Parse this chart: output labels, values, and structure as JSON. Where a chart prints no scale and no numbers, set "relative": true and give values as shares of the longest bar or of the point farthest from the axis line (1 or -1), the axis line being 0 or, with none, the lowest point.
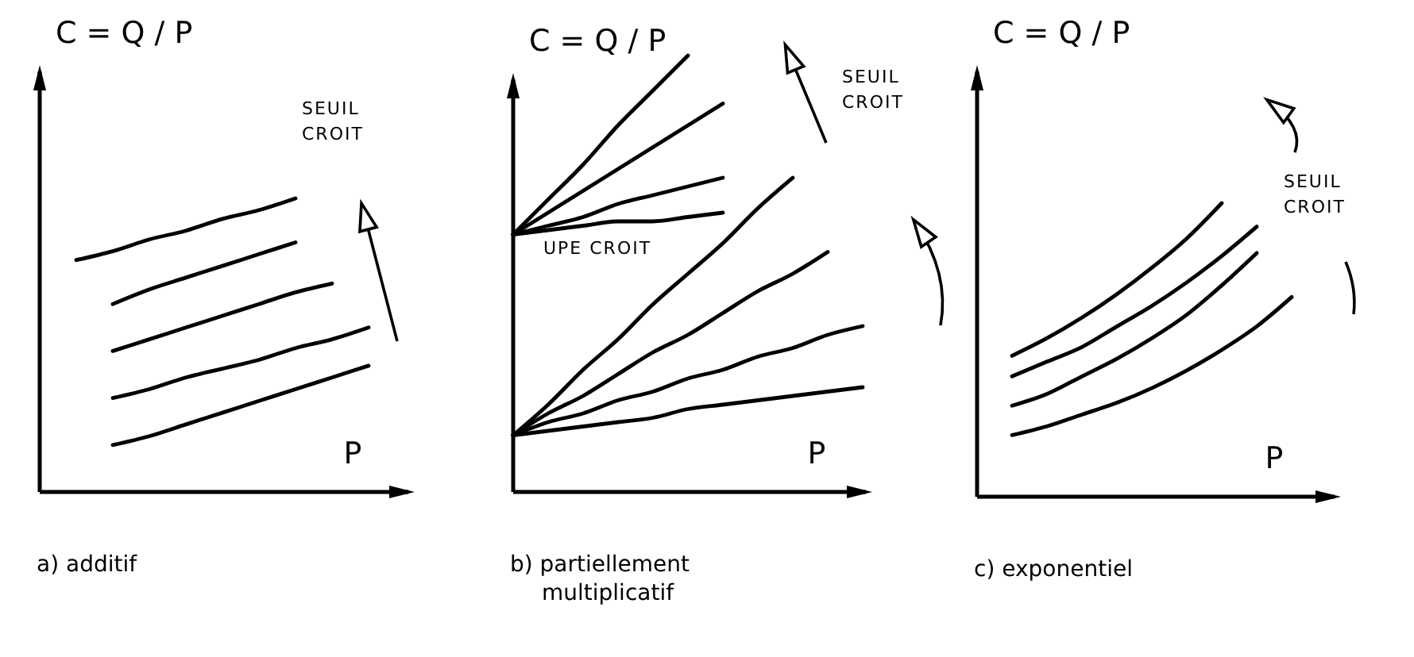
{
  "chart_data": [
    {
      "type": "line",
      "title": "a) additif",
      "xlabel": "P",
      "ylabel": "C = Q / P",
      "relative": true,
      "tick_labels": false,
      "annotations": [
        "SEUIL CROIT"
      ],
      "categories": [
        null,
        null,
        null,
        null,
        null,
        null,
        null,
        null,
        null,
        null,
        null
      ],
      "series": [
        {
          "color": "#000000",
          "values": [
            null,
            0.79,
            0.82,
            0.86,
            0.89,
            0.93,
            0.96,
            1.0,
            null,
            null,
            null
          ]
        },
        {
          "color": "#000000",
          "values": [
            null,
            null,
            0.64,
            0.69,
            0.73,
            0.77,
            0.81,
            0.85,
            null,
            null,
            null
          ]
        },
        {
          "color": "#000000",
          "values": [
            null,
            null,
            0.48,
            0.52,
            0.56,
            0.6,
            0.64,
            0.68,
            0.71,
            null,
            null
          ]
        },
        {
          "color": "#000000",
          "values": [
            null,
            null,
            0.32,
            0.35,
            0.39,
            0.42,
            0.45,
            0.49,
            0.52,
            0.56,
            null
          ]
        },
        {
          "color": "#000000",
          "values": [
            null,
            null,
            0.16,
            0.19,
            0.23,
            0.27,
            0.31,
            0.35,
            0.39,
            0.43,
            null
          ]
        }
      ]
    },
    {
      "type": "line",
      "title": "b) partiellement multiplicatif",
      "xlabel": "P",
      "ylabel": "C = Q / P",
      "relative": true,
      "tick_labels": false,
      "annotations": [
        "SEUIL CROIT",
        "UPE CROIT"
      ],
      "categories": [
        null,
        null,
        null,
        null,
        null,
        null,
        null,
        null,
        null,
        null,
        null
      ],
      "series": [
        {
          "color": "#000000",
          "values": [
            0.59,
            0.67,
            0.75,
            0.84,
            0.92,
            1.0,
            null,
            null,
            null,
            null,
            null
          ]
        },
        {
          "color": "#000000",
          "values": [
            0.59,
            0.64,
            0.69,
            0.74,
            0.79,
            0.84,
            0.89,
            null,
            null,
            null,
            null
          ]
        },
        {
          "color": "#000000",
          "values": [
            0.59,
            0.61,
            0.63,
            0.66,
            0.68,
            0.7,
            0.72,
            null,
            null,
            null,
            null
          ]
        },
        {
          "color": "#000000",
          "values": [
            0.59,
            0.6,
            0.61,
            0.62,
            0.62,
            0.63,
            0.64,
            null,
            null,
            null,
            null
          ]
        },
        {
          "color": "#000000",
          "values": [
            0.13,
            0.2,
            0.28,
            0.35,
            0.43,
            0.5,
            0.57,
            0.65,
            0.72,
            null,
            null
          ]
        },
        {
          "color": "#000000",
          "values": [
            0.13,
            0.18,
            0.22,
            0.27,
            0.32,
            0.36,
            0.41,
            0.46,
            0.5,
            0.55,
            null
          ]
        },
        {
          "color": "#000000",
          "values": [
            0.13,
            0.16,
            0.18,
            0.21,
            0.23,
            0.26,
            0.28,
            0.31,
            0.33,
            0.36,
            0.38
          ]
        },
        {
          "color": "#000000",
          "values": [
            0.13,
            0.14,
            0.15,
            0.16,
            0.17,
            0.19,
            0.2,
            0.21,
            0.22,
            0.23,
            0.24
          ]
        }
      ]
    },
    {
      "type": "line",
      "title": "c) exponentiel",
      "xlabel": "P",
      "ylabel": "C = Q / P",
      "relative": true,
      "tick_labels": false,
      "annotations": [
        "SEUIL CROIT"
      ],
      "categories": [
        null,
        null,
        null,
        null,
        null,
        null,
        null,
        null,
        null,
        null,
        null
      ],
      "series": [
        {
          "color": "#000000",
          "values": [
            null,
            0.48,
            0.54,
            0.61,
            0.69,
            0.78,
            0.88,
            1.0,
            null,
            null,
            null
          ]
        },
        {
          "color": "#000000",
          "values": [
            null,
            0.41,
            0.46,
            0.51,
            0.58,
            0.65,
            0.73,
            0.82,
            0.92,
            null,
            null
          ]
        },
        {
          "color": "#000000",
          "values": [
            null,
            0.31,
            0.35,
            0.41,
            0.47,
            0.54,
            0.62,
            0.72,
            0.83,
            null,
            null
          ]
        },
        {
          "color": "#000000",
          "values": [
            null,
            0.21,
            0.24,
            0.28,
            0.32,
            0.37,
            0.43,
            0.5,
            0.58,
            0.68,
            null
          ]
        }
      ]
    }
  ]
}
